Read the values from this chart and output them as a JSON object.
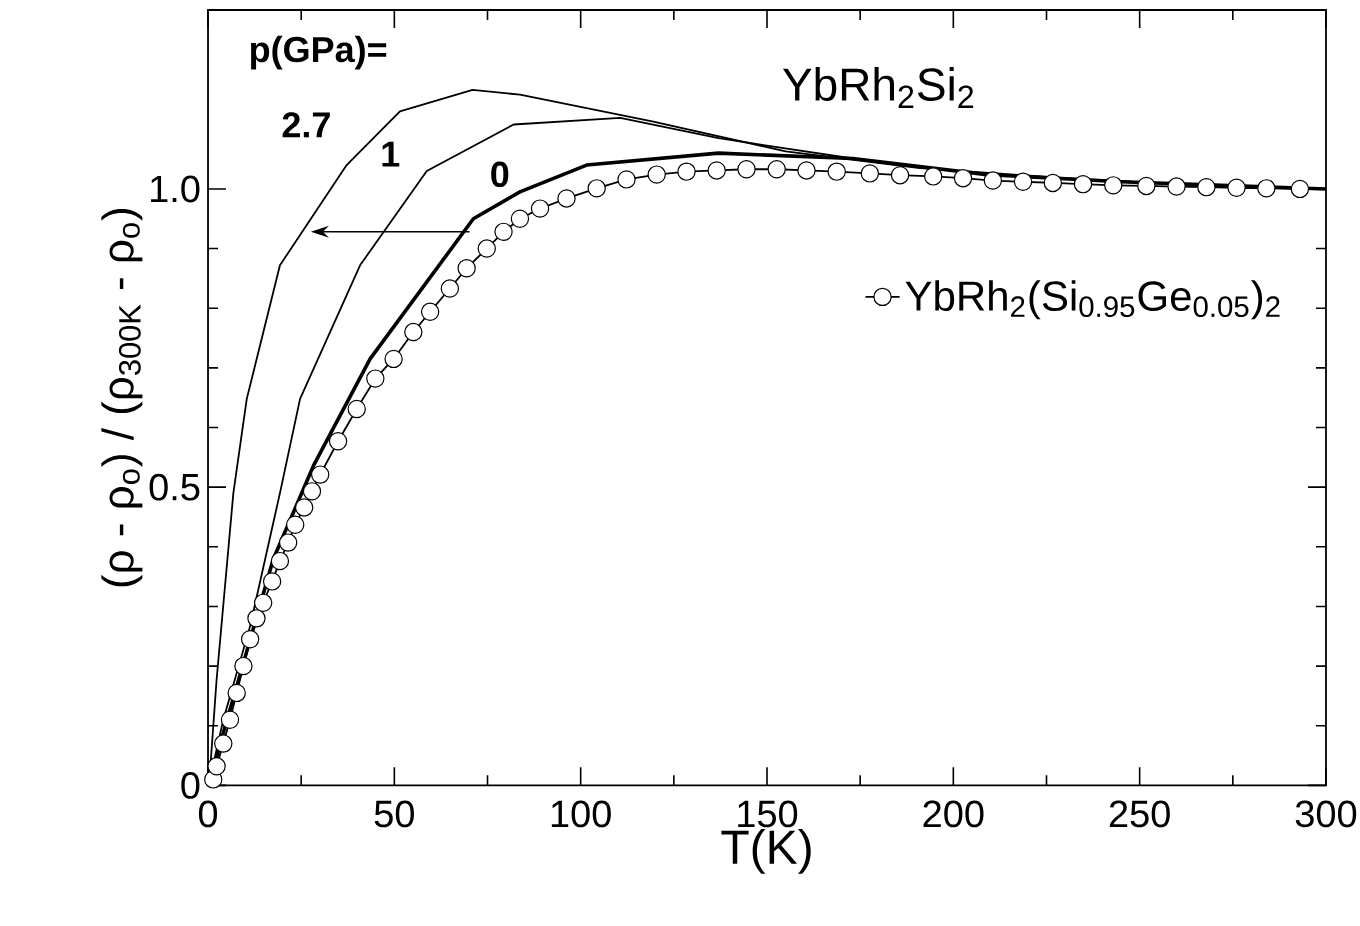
{
  "chart_data": {
    "type": "line",
    "xlabel": "T(K)",
    "ylabel": "(ρ - ρ$_{o}$) / (ρ$_{300K}$ - ρ$_{o}$)",
    "xlim": [
      0,
      300
    ],
    "ylim": [
      0,
      1.3
    ],
    "xticks": [
      0,
      50,
      100,
      150,
      200,
      250,
      300
    ],
    "yticks": [
      0,
      {
        "value": 0.5,
        "label": "0.5"
      },
      {
        "value": 1,
        "label": "1.0"
      }
    ],
    "legend": "right",
    "annotations": [
      "p(GPa)=",
      "YbRh$_{2}$Si$_{2}$",
      "2.7",
      "1",
      "0"
    ],
    "series": [
      {
        "marker": "none",
        "color": "#000000",
        "x": [
          0.5,
          2.3,
          6.8,
          10.4,
          19.3,
          37.2,
          51.5,
          71,
          83.7,
          119.5,
          155,
          191,
          230,
          260,
          300
        ],
        "values": [
          0.02,
          0.177,
          0.49,
          0.648,
          0.872,
          1.04,
          1.13,
          1.166,
          1.158,
          1.113,
          1.063,
          1.035,
          1.018,
          1.008,
          1.0
        ]
      },
      {
        "marker": "none",
        "color": "#000000",
        "x": [
          0.5,
          4.1,
          11.3,
          19.3,
          24.7,
          40.8,
          58.7,
          82,
          110.6,
          137,
          173,
          209,
          250,
          300
        ],
        "values": [
          0.01,
          0.11,
          0.267,
          0.49,
          0.648,
          0.872,
          1.03,
          1.108,
          1.119,
          1.085,
          1.051,
          1.024,
          1.01,
          1.0
        ]
      },
      {
        "marker": "none",
        "color": "#000000",
        "x": [
          0.5,
          4.1,
          17.5,
          28.3,
          43.5,
          71.2,
          83.7,
          101.6,
          137,
          173,
          209,
          245,
          300
        ],
        "values": [
          0.005,
          0.088,
          0.379,
          0.536,
          0.715,
          0.95,
          0.995,
          1.04,
          1.06,
          1.051,
          1.024,
          1.012,
          1.0
        ]
      },
      {
        "marker": "circle",
        "color": "#000000",
        "name": "YbRh$_{2}$(Si$_{0.95}$Ge$_{0.05}$)$_{2}$",
        "x": [
          1.4,
          2.3,
          4.1,
          5.9,
          7.7,
          9.5,
          11.3,
          13,
          14.8,
          17.2,
          19.3,
          21.5,
          23.4,
          25.8,
          27.9,
          30.1,
          34.9,
          39.9,
          44.9,
          49.8,
          55.1,
          59.6,
          64.9,
          69.4,
          74.8,
          79.3,
          83.7,
          89.1,
          96.2,
          104.3,
          112.3,
          120.4,
          128.4,
          136.5,
          144.5,
          152.6,
          160.6,
          168.7,
          177.6,
          185.7,
          194.6,
          202.6,
          210.6,
          218.7,
          226.7,
          234.8,
          242.9,
          251.8,
          259.9,
          267.9,
          276,
          284,
          293
        ],
        "values": [
          0.01,
          0.032,
          0.07,
          0.11,
          0.155,
          0.2,
          0.245,
          0.28,
          0.306,
          0.342,
          0.376,
          0.407,
          0.437,
          0.466,
          0.493,
          0.521,
          0.577,
          0.631,
          0.682,
          0.715,
          0.76,
          0.794,
          0.833,
          0.867,
          0.9,
          0.928,
          0.95,
          0.967,
          0.984,
          1.001,
          1.016,
          1.024,
          1.029,
          1.031,
          1.033,
          1.033,
          1.031,
          1.029,
          1.026,
          1.023,
          1.021,
          1.018,
          1.014,
          1.012,
          1.01,
          1.008,
          1.006,
          1.005,
          1.004,
          1.003,
          1.002,
          1.001,
          1.0
        ]
      }
    ]
  }
}
